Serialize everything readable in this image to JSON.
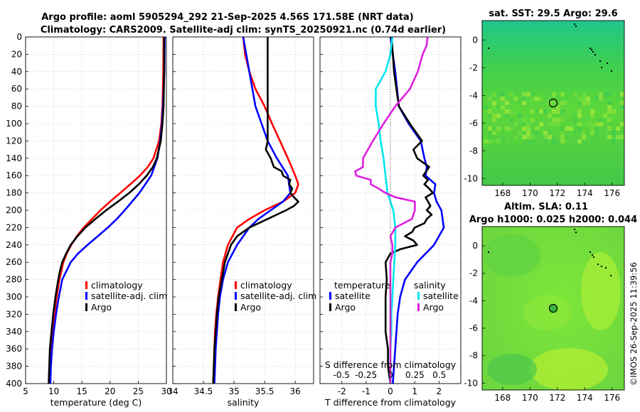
{
  "header": {
    "line1": "Argo profile: aoml 5905294_292 21-Sep-2025 4.56S 171.58E (NRT data)",
    "line2": "Climatology: CARS2009. Satellite-adj clim: synTS_20250921.nc (0.74d earlier)"
  },
  "credit": "©IMOS 26-Sep-2025 11:39:56",
  "colors": {
    "climatology": "#ff0000",
    "satellite": "#0000ff",
    "argo": "#000000",
    "temp_diff": "#00e6f0",
    "salt_diff": "#e020e0"
  },
  "chart_data": [
    {
      "type": "line",
      "id": "temperature",
      "xlabel": "temperature (deg C)",
      "ylabel": "",
      "xlim": [
        5,
        30
      ],
      "ylim": [
        400,
        0
      ],
      "xticks": [
        "5",
        "10",
        "15",
        "20",
        "25",
        "30"
      ],
      "yticks": [
        "0",
        "20",
        "40",
        "60",
        "80",
        "100",
        "120",
        "140",
        "160",
        "180",
        "200",
        "220",
        "240",
        "260",
        "280",
        "300",
        "320",
        "340",
        "360",
        "380",
        "400"
      ],
      "legend": [
        "climatology",
        "satellite-adj. clim",
        "Argo"
      ],
      "series": [
        {
          "name": "climatology",
          "color": "#ff0000",
          "depth": [
            0,
            40,
            80,
            100,
            120,
            140,
            150,
            160,
            170,
            180,
            190,
            200,
            210,
            220,
            230,
            240,
            250,
            260,
            280,
            300,
            320,
            340,
            360,
            380,
            400
          ],
          "values": [
            29.5,
            29.45,
            29.3,
            29.1,
            28.7,
            27.7,
            26.7,
            25.3,
            23.6,
            21.8,
            20.0,
            18.3,
            16.8,
            15.3,
            14.1,
            13.1,
            12.3,
            11.7,
            11.0,
            10.5,
            10.1,
            9.8,
            9.5,
            9.3,
            9.1
          ]
        },
        {
          "name": "satellite-adj. clim",
          "color": "#0000ff",
          "depth": [
            0,
            40,
            80,
            100,
            120,
            140,
            160,
            180,
            200,
            210,
            220,
            230,
            240,
            250,
            260,
            280,
            300,
            320,
            340,
            360,
            380,
            400
          ],
          "values": [
            29.7,
            29.65,
            29.4,
            29.2,
            28.9,
            28.4,
            27.3,
            25.2,
            22.6,
            21.2,
            19.6,
            17.8,
            16.0,
            14.3,
            13.0,
            11.5,
            10.9,
            10.4,
            10.0,
            9.7,
            9.5,
            9.4
          ]
        },
        {
          "name": "Argo",
          "color": "#000000",
          "depth": [
            0,
            40,
            80,
            100,
            120,
            140,
            150,
            160,
            170,
            180,
            190,
            200,
            210,
            220,
            230,
            240,
            250,
            260,
            270,
            280,
            300,
            320,
            340,
            360,
            380,
            400
          ],
          "values": [
            29.6,
            29.6,
            29.5,
            29.3,
            29.0,
            28.3,
            27.6,
            26.5,
            25.1,
            23.4,
            21.4,
            19.3,
            17.4,
            15.6,
            14.2,
            13.0,
            12.2,
            11.5,
            11.1,
            10.8,
            10.3,
            9.9,
            9.6,
            9.3,
            9.2,
            9.1
          ]
        }
      ]
    },
    {
      "type": "line",
      "id": "salinity",
      "xlabel": "salinity",
      "ylabel": "",
      "xlim": [
        34,
        36.3
      ],
      "ylim": [
        400,
        0
      ],
      "xticks": [
        "34",
        "34.5",
        "35",
        "35.5",
        "36"
      ],
      "legend": [
        "climatology",
        "satellite-adj. clim",
        "Argo"
      ],
      "series": [
        {
          "name": "climatology",
          "color": "#ff0000",
          "depth": [
            0,
            20,
            40,
            60,
            80,
            100,
            120,
            140,
            160,
            170,
            180,
            190,
            200,
            210,
            220,
            240,
            260,
            280,
            300,
            320,
            340,
            360,
            380,
            400
          ],
          "values": [
            35.15,
            35.18,
            35.25,
            35.35,
            35.5,
            35.62,
            35.75,
            35.88,
            36.0,
            36.05,
            36.0,
            35.8,
            35.5,
            35.25,
            35.05,
            34.9,
            34.82,
            34.78,
            34.74,
            34.71,
            34.69,
            34.68,
            34.67,
            34.66
          ]
        },
        {
          "name": "satellite-adj. clim",
          "color": "#0000ff",
          "depth": [
            0,
            20,
            40,
            60,
            80,
            100,
            120,
            140,
            160,
            180,
            190,
            200,
            210,
            220,
            240,
            260,
            280,
            300,
            320,
            340,
            360,
            380,
            400
          ],
          "values": [
            35.15,
            35.2,
            35.25,
            35.3,
            35.35,
            35.45,
            35.55,
            35.7,
            35.88,
            35.92,
            35.8,
            35.6,
            35.4,
            35.25,
            35.05,
            34.9,
            34.82,
            34.77,
            34.74,
            34.72,
            34.7,
            34.69,
            34.68
          ]
        },
        {
          "name": "Argo",
          "color": "#000000",
          "depth": [
            0,
            20,
            40,
            60,
            80,
            100,
            120,
            130,
            140,
            150,
            155,
            160,
            165,
            170,
            175,
            180,
            185,
            190,
            195,
            200,
            210,
            220,
            230,
            240,
            260,
            280,
            300,
            320,
            340,
            360,
            380,
            400
          ],
          "values": [
            35.55,
            35.55,
            35.55,
            35.55,
            35.55,
            35.55,
            35.55,
            35.52,
            35.6,
            35.65,
            35.78,
            35.8,
            35.92,
            35.9,
            35.95,
            35.92,
            35.98,
            36.05,
            35.98,
            35.85,
            35.55,
            35.25,
            35.05,
            34.95,
            34.85,
            34.8,
            34.75,
            34.72,
            34.7,
            34.68,
            34.67,
            34.66
          ]
        }
      ]
    },
    {
      "type": "line",
      "id": "differences",
      "xlabel": "T difference from climatology",
      "x2label": "S difference from climatology",
      "xlim": [
        -2.9,
        2.9
      ],
      "ylim": [
        400,
        0
      ],
      "xticks": [
        "-2",
        "-1",
        "0",
        "1",
        "2"
      ],
      "x2ticks": [
        "-0.5",
        "-0.25",
        "0",
        "0.25",
        "0.5"
      ],
      "legend_temperature": {
        "title": "temperature",
        "items": [
          "satellite",
          "Argo"
        ]
      },
      "legend_salinity": {
        "title": "salinity",
        "items": [
          "satellite",
          "Argo"
        ]
      },
      "series": [
        {
          "name": "T satellite - clim",
          "color": "#0000ff",
          "depth": [
            0,
            40,
            80,
            100,
            120,
            140,
            150,
            160,
            170,
            180,
            190,
            200,
            220,
            240,
            260,
            280,
            300,
            320,
            360,
            400
          ],
          "values": [
            0.0,
            0.2,
            0.35,
            0.75,
            1.25,
            1.4,
            1.5,
            1.45,
            1.85,
            1.8,
            1.9,
            2.1,
            2.2,
            1.8,
            1.1,
            0.6,
            0.4,
            0.3,
            0.2,
            0.1
          ]
        },
        {
          "name": "T Argo - clim",
          "color": "#000000",
          "depth": [
            0,
            40,
            80,
            100,
            120,
            130,
            140,
            150,
            160,
            165,
            170,
            175,
            180,
            185,
            190,
            195,
            200,
            205,
            210,
            215,
            220,
            225,
            230,
            235,
            240,
            245,
            250,
            260,
            280,
            300,
            320,
            340,
            360,
            380,
            400
          ],
          "values": [
            0.05,
            0.15,
            0.35,
            0.8,
            1.3,
            0.95,
            1.1,
            1.6,
            1.35,
            1.55,
            1.4,
            1.6,
            1.75,
            1.45,
            1.55,
            1.65,
            1.5,
            1.7,
            1.5,
            1.4,
            1.0,
            0.9,
            0.6,
            0.95,
            1.1,
            0.4,
            0.0,
            -0.2,
            -0.15,
            -0.2,
            -0.2,
            -0.2,
            -0.1,
            -0.1,
            0.0
          ]
        },
        {
          "name": "S satellite - clim",
          "color": "#00e6f0",
          "depth": [
            0,
            20,
            40,
            60,
            80,
            100,
            120,
            140,
            160,
            180,
            190,
            200,
            220,
            240,
            260,
            280,
            300,
            320,
            340,
            360,
            380,
            400
          ],
          "values": [
            0.02,
            0.0,
            -0.05,
            -0.15,
            -0.15,
            -0.12,
            -0.1,
            -0.07,
            -0.05,
            -0.03,
            0.0,
            0.03,
            0.05,
            0.05,
            0.04,
            0.03,
            0.02,
            0.01,
            0.01,
            0.0,
            0.0,
            0.0
          ]
        },
        {
          "name": "S Argo - clim",
          "color": "#e020e0",
          "depth": [
            0,
            10,
            20,
            40,
            60,
            80,
            100,
            120,
            140,
            150,
            155,
            160,
            165,
            170,
            175,
            180,
            185,
            190,
            200,
            210,
            220,
            230,
            240,
            250,
            260,
            280,
            300,
            320,
            340,
            360,
            380,
            400
          ],
          "values": [
            0.38,
            0.37,
            0.33,
            0.28,
            0.2,
            0.05,
            -0.07,
            -0.18,
            -0.28,
            -0.28,
            -0.36,
            -0.35,
            -0.2,
            -0.2,
            -0.12,
            -0.05,
            0.05,
            0.25,
            0.25,
            0.22,
            0.05,
            0.0,
            0.02,
            0.02,
            0.0,
            0.0,
            0.0,
            0.0,
            0.0,
            0.0,
            0.0,
            0.0
          ]
        }
      ]
    },
    {
      "type": "heatmap",
      "id": "sst-map",
      "title": "sat. SST: 29.5 Argo: 29.6",
      "xticks": [
        "168",
        "170",
        "172",
        "174",
        "176"
      ],
      "yticks": [
        "0",
        "-2",
        "-4",
        "-6",
        "-8",
        "-10"
      ],
      "xlim": [
        166.5,
        176.9
      ],
      "ylim": [
        -10.5,
        1.4
      ],
      "argo_position": {
        "lon": 171.58,
        "lat": -4.56
      }
    },
    {
      "type": "heatmap",
      "id": "sla-map",
      "title": "Altim. SLA: 0.11",
      "subtitle": "Argo h1000: 0.025 h2000: 0.044",
      "xticks": [
        "168",
        "170",
        "172",
        "174",
        "176"
      ],
      "yticks": [
        "0",
        "-2",
        "-4",
        "-6",
        "-8",
        "-10"
      ],
      "xlim": [
        166.5,
        176.9
      ],
      "ylim": [
        -10.5,
        1.4
      ],
      "argo_position": {
        "lon": 171.58,
        "lat": -4.56
      }
    }
  ]
}
